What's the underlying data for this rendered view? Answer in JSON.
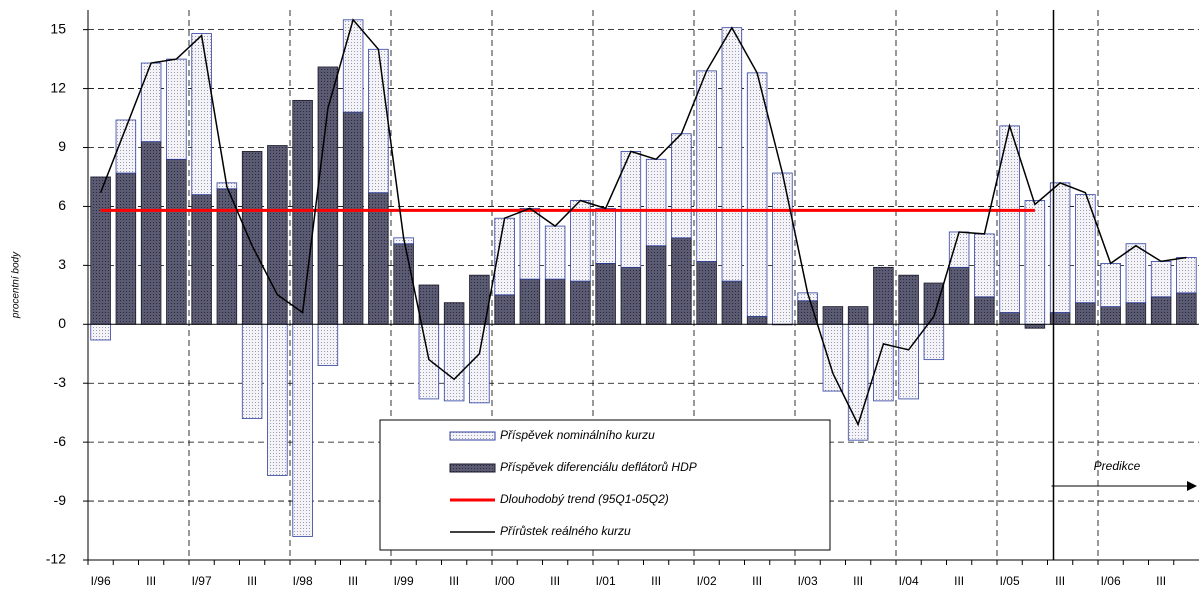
{
  "chart_data": {
    "type": "bar",
    "y_label": "procentní body",
    "annotation": "Predikce",
    "categories": [
      "I/96",
      null,
      "III",
      null,
      "I/97",
      null,
      "III",
      null,
      "I/98",
      null,
      "III",
      null,
      "I/99",
      null,
      "III",
      null,
      "I/00",
      null,
      "III",
      null,
      "I/01",
      null,
      "III",
      null,
      "I/02",
      null,
      "III",
      null,
      "I/03",
      null,
      "III",
      null,
      "I/04",
      null,
      "III",
      null,
      "I/05",
      null,
      "III",
      null,
      "I/06",
      null,
      "III",
      null
    ],
    "series": [
      {
        "name": "Příspěvek nominálního kurzu",
        "type": "bar",
        "color": "#e8e8f0",
        "stroke": "#3040a0",
        "values": [
          -0.8,
          2.7,
          4.0,
          5.1,
          8.2,
          0.3,
          -4.8,
          -7.7,
          -10.8,
          -2.1,
          4.7,
          7.3,
          0.3,
          -3.8,
          -3.9,
          -4.0,
          3.9,
          3.6,
          2.7,
          4.1,
          2.8,
          5.9,
          4.4,
          5.3,
          9.7,
          12.9,
          12.4,
          7.7,
          0.4,
          -3.4,
          -5.9,
          -3.9,
          -3.8,
          -1.8,
          1.8,
          3.2,
          9.5,
          6.3,
          6.6,
          5.5,
          2.2,
          3.0,
          1.8,
          1.8
        ]
      },
      {
        "name": "Příspěvek diferenciálu deflátorů HDP",
        "type": "bar",
        "color": "#55556e",
        "stroke": "#1a1a2a",
        "values": [
          7.5,
          7.7,
          9.3,
          8.4,
          6.6,
          6.9,
          8.8,
          9.1,
          11.4,
          13.1,
          10.8,
          6.7,
          4.1,
          2.0,
          1.1,
          2.5,
          1.5,
          2.3,
          2.3,
          2.2,
          3.1,
          2.9,
          4.0,
          4.4,
          3.2,
          2.2,
          0.4,
          0.0,
          1.2,
          0.9,
          0.9,
          2.9,
          2.5,
          2.1,
          2.9,
          1.4,
          0.6,
          -0.2,
          0.6,
          1.1,
          0.9,
          1.1,
          1.4,
          1.6
        ]
      },
      {
        "name": "Dlouhodobý trend (95Q1-05Q2)",
        "type": "line",
        "color": "#ff0000",
        "width": 3,
        "values": [
          5.8,
          5.8,
          5.8,
          5.8,
          5.8,
          5.8,
          5.8,
          5.8,
          5.8,
          5.8,
          5.8,
          5.8,
          5.8,
          5.8,
          5.8,
          5.8,
          5.8,
          5.8,
          5.8,
          5.8,
          5.8,
          5.8,
          5.8,
          5.8,
          5.8,
          5.8,
          5.8,
          5.8,
          5.8,
          5.8,
          5.8,
          5.8,
          5.8,
          5.8,
          5.8,
          5.8,
          5.8,
          5.8,
          null,
          null,
          null,
          null,
          null,
          null
        ]
      },
      {
        "name": "Přírůstek reálného kurzu",
        "type": "line",
        "color": "#000000",
        "width": 1.5,
        "values": [
          6.7,
          10.0,
          13.3,
          13.5,
          14.7,
          7.0,
          4.0,
          1.5,
          0.6,
          11.0,
          15.5,
          14.0,
          4.4,
          -1.8,
          -2.8,
          -1.5,
          5.4,
          5.9,
          5.0,
          6.3,
          5.9,
          8.8,
          8.4,
          9.7,
          12.9,
          15.1,
          12.8,
          7.7,
          1.6,
          -2.5,
          -5.1,
          -1.0,
          -1.3,
          0.4,
          4.7,
          4.6,
          10.1,
          6.1,
          7.2,
          6.7,
          3.1,
          4.0,
          3.2,
          3.4
        ]
      }
    ],
    "ylim": [
      -12,
      16
    ],
    "yticks": [
      -12,
      -9,
      -6,
      -3,
      0,
      3,
      6,
      9,
      12,
      15
    ],
    "grid": true
  }
}
